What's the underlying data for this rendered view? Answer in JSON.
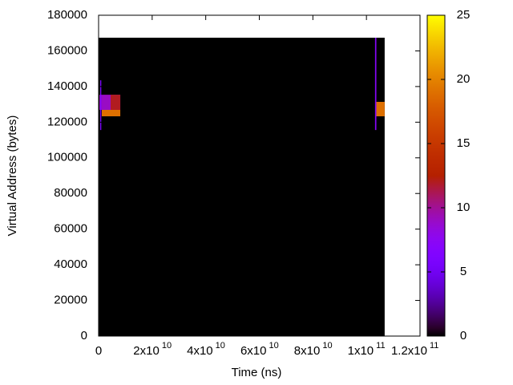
{
  "chart_data": {
    "type": "heatmap",
    "x_label": "Time (ns)",
    "y_label": "Virtual Address (bytes)",
    "xlim": [
      0,
      120000000000
    ],
    "ylim": [
      0,
      180000
    ],
    "xticks": [
      0,
      {
        "value": 20000000000,
        "label": "2x10",
        "exponent": "10"
      },
      {
        "value": 40000000000,
        "label": "4x10",
        "exponent": "10"
      },
      {
        "value": 60000000000,
        "label": "6x10",
        "exponent": "10"
      },
      {
        "value": 80000000000,
        "label": "8x10",
        "exponent": "10"
      },
      {
        "value": 100000000000,
        "label": "1x10",
        "exponent": "11"
      },
      {
        "value": 120000000000,
        "label": "1.2x10",
        "exponent": "11"
      }
    ],
    "yticks": [
      0,
      20000,
      40000,
      60000,
      80000,
      100000,
      120000,
      140000,
      160000,
      180000
    ],
    "cblim": [
      0,
      25
    ],
    "cbticks": [
      0,
      5,
      10,
      15,
      20,
      25
    ],
    "palette": "gnuplot rgbformulae 7,5,15",
    "cells": [
      {
        "x": [
          0,
          106800000000
        ],
        "y": [
          0,
          167400
        ],
        "value": 0
      },
      {
        "x": [
          300000000,
          8100000000
        ],
        "y": [
          126900,
          135400
        ],
        "value": 9
      },
      {
        "x": [
          4500000000,
          8100000000
        ],
        "y": [
          126900,
          135400
        ],
        "value": 12
      },
      {
        "x": [
          1200000000,
          8100000000
        ],
        "y": [
          123300,
          126900
        ],
        "value": 19
      },
      {
        "x": [
          600000000,
          1000000000
        ],
        "y": [
          115600,
          143500
        ],
        "value": 6
      },
      {
        "x": [
          103200000000,
          103700000000
        ],
        "y": [
          115600,
          167400
        ],
        "value": 7
      },
      {
        "x": [
          103700000000,
          106800000000
        ],
        "y": [
          123300,
          131400
        ],
        "value": 19
      }
    ]
  }
}
